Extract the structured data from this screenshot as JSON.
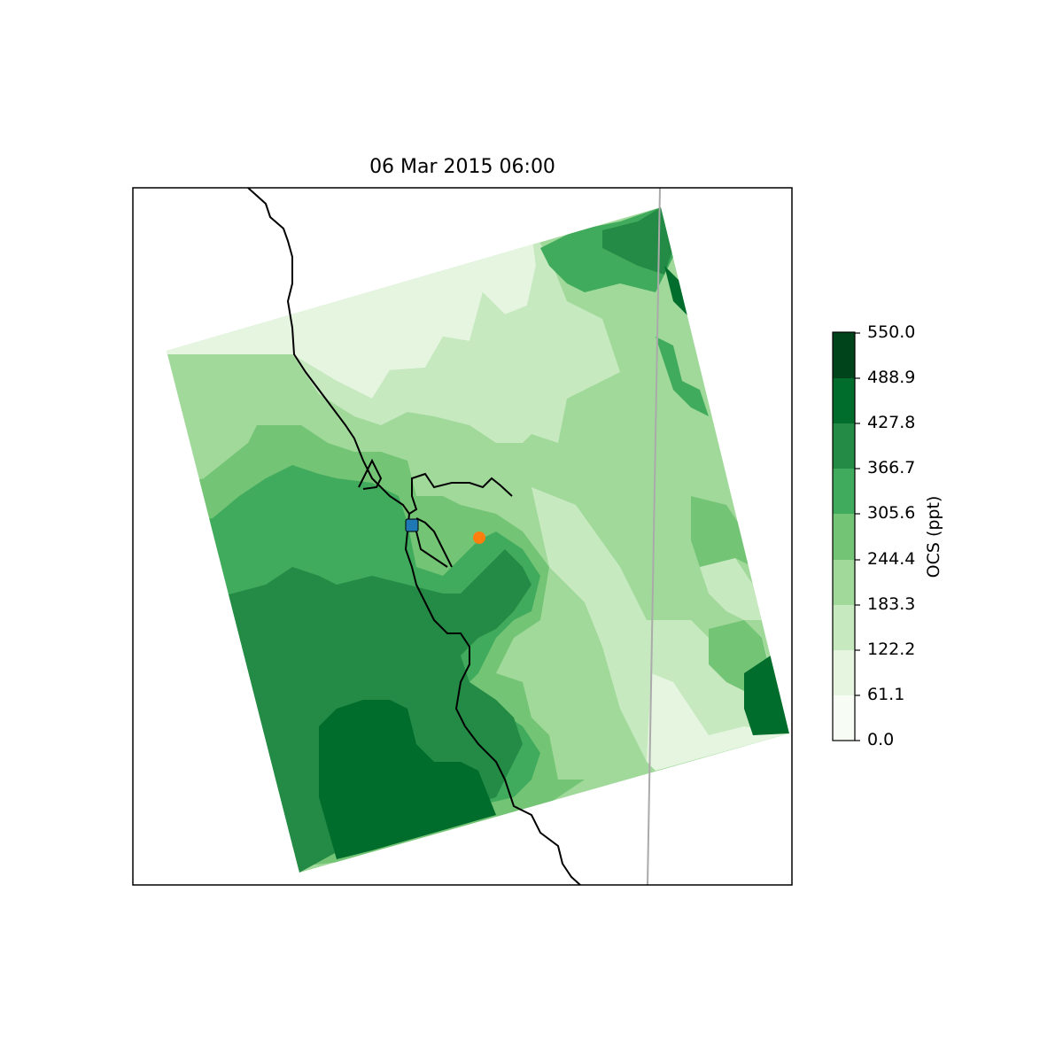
{
  "title": "06 Mar 2015 06:00",
  "colorbar": {
    "label": "OCS (ppt)",
    "ticks": [
      "550.0",
      "488.9",
      "427.8",
      "366.7",
      "305.6",
      "244.4",
      "183.3",
      "122.2",
      "61.1",
      "0.0"
    ],
    "range": [
      0.0,
      550.0
    ],
    "colors": [
      "#f7fcf5",
      "#e5f5e0",
      "#c7e9c0",
      "#a1d99b",
      "#74c476",
      "#41ab5d",
      "#238b45",
      "#006d2c",
      "#00441b"
    ]
  },
  "markers": [
    {
      "name": "site-square",
      "shape": "square",
      "color": "#1f77b4"
    },
    {
      "name": "site-circle",
      "shape": "circle",
      "color": "#ff7f0e"
    }
  ]
}
